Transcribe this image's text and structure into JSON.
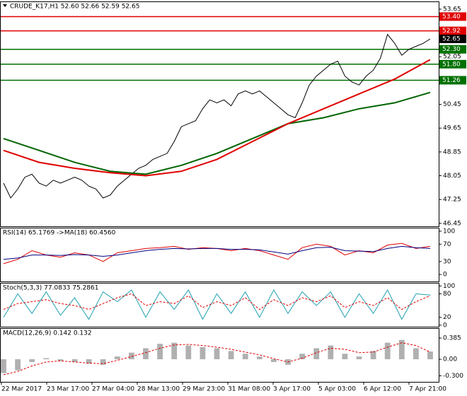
{
  "chart_data": [
    {
      "type": "line",
      "title": "CRUDE_K17,H1  52.60 52.66 52.59 52.65",
      "ylim": [
        46.35,
        53.91
      ],
      "yticks": [
        46.45,
        47.25,
        48.05,
        48.85,
        49.65,
        50.45,
        52.05,
        53.65
      ],
      "xlabels": [
        "22 Mar 2017",
        "23 Mar 17:00",
        "27 Mar 04:00",
        "28 Mar 13:00",
        "29 Mar 23:00",
        "31 Mar 08:00",
        "3 Apr 17:00",
        "5 Apr 03:00",
        "6 Apr 12:00",
        "7 Apr 21:00"
      ],
      "levels": [
        {
          "value": 53.4,
          "label": "53.40",
          "color": "#e00000"
        },
        {
          "value": 52.92,
          "label": "52.92",
          "color": "#e00000"
        },
        {
          "value": 52.3,
          "label": "52.30",
          "color": "#007000"
        },
        {
          "value": 51.8,
          "label": "51.80",
          "color": "#007000"
        },
        {
          "value": 51.26,
          "label": "51.26",
          "color": "#007000"
        }
      ],
      "last": 52.65,
      "series": [
        {
          "style": "line",
          "color": "#000000",
          "width": 1,
          "values": [
            47.8,
            47.3,
            47.6,
            48.0,
            48.1,
            47.8,
            47.7,
            47.9,
            47.8,
            47.9,
            48.0,
            47.9,
            47.7,
            47.6,
            47.3,
            47.4,
            47.7,
            47.9,
            48.1,
            48.3,
            48.4,
            48.6,
            48.7,
            48.8,
            49.2,
            49.7,
            49.8,
            49.9,
            50.3,
            50.6,
            50.5,
            50.6,
            50.4,
            50.8,
            50.9,
            50.8,
            50.9,
            50.7,
            50.5,
            50.3,
            50.1,
            50.0,
            50.5,
            51.1,
            51.4,
            51.6,
            51.8,
            51.9,
            51.4,
            51.2,
            51.1,
            51.4,
            51.6,
            52.0,
            52.8,
            52.5,
            52.1,
            52.3,
            52.4,
            52.5,
            52.65
          ]
        },
        {
          "style": "line",
          "color": "#006400",
          "width": 2,
          "values": [
            49.3,
            48.9,
            48.5,
            48.2,
            48.1,
            48.4,
            48.8,
            49.3,
            49.8,
            50.0,
            50.3,
            50.5,
            50.85
          ]
        },
        {
          "style": "line",
          "color": "#e00000",
          "width": 2,
          "values": [
            48.9,
            48.5,
            48.3,
            48.15,
            48.05,
            48.2,
            48.6,
            49.2,
            49.8,
            50.3,
            50.8,
            51.3,
            51.95
          ]
        }
      ]
    },
    {
      "type": "line",
      "title": "RSI(14) 65.1769 ->MA(18) 60.4560",
      "ylim": [
        -16,
        108
      ],
      "yticks": [
        0,
        30,
        70,
        100
      ],
      "series": [
        {
          "style": "line",
          "color": "#e00000",
          "width": 1,
          "values": [
            25,
            35,
            55,
            45,
            40,
            50,
            45,
            30,
            50,
            55,
            60,
            62,
            65,
            58,
            62,
            60,
            55,
            60,
            55,
            45,
            35,
            62,
            70,
            65,
            45,
            55,
            50,
            68,
            72,
            60,
            65
          ]
        },
        {
          "style": "line",
          "color": "#000080",
          "width": 1,
          "values": [
            35,
            38,
            45,
            45,
            44,
            46,
            45,
            42,
            45,
            50,
            55,
            58,
            60,
            59,
            60,
            60,
            58,
            58,
            57,
            52,
            47,
            55,
            62,
            63,
            55,
            54,
            53,
            60,
            65,
            62,
            60
          ]
        }
      ]
    },
    {
      "type": "line",
      "title": "Stoch(5,3,3) 77.0833 75.2861",
      "ylim": [
        -4,
        108
      ],
      "yticks": [
        0,
        20,
        80,
        100
      ],
      "series": [
        {
          "style": "line",
          "color": "#20a0b0",
          "width": 1,
          "values": [
            20,
            80,
            30,
            85,
            25,
            70,
            15,
            85,
            60,
            90,
            20,
            85,
            40,
            90,
            15,
            80,
            30,
            85,
            20,
            90,
            30,
            85,
            50,
            85,
            20,
            80,
            30,
            90,
            15,
            80,
            77
          ]
        },
        {
          "style": "line",
          "color": "#e00000",
          "width": 1,
          "dash": true,
          "values": [
            40,
            55,
            60,
            65,
            55,
            50,
            40,
            55,
            70,
            80,
            50,
            60,
            55,
            75,
            45,
            60,
            50,
            70,
            40,
            65,
            50,
            70,
            60,
            75,
            45,
            60,
            50,
            70,
            40,
            60,
            75
          ]
        }
      ]
    },
    {
      "type": "bar",
      "title": "MACD(12,26,9) 0.142 0.132",
      "ylim": [
        -0.41,
        0.565
      ],
      "yticks": [
        {
          "value": -0.3,
          "label": "-0.300"
        },
        {
          "value": 0,
          "label": "0.00"
        },
        0.385
      ],
      "series": [
        {
          "style": "bar",
          "color": "#b0b0b0",
          "values": [
            -0.25,
            -0.2,
            -0.05,
            0.02,
            -0.03,
            -0.05,
            -0.08,
            -0.1,
            0.05,
            0.12,
            0.2,
            0.28,
            0.3,
            0.25,
            0.22,
            0.2,
            0.15,
            0.1,
            0.05,
            -0.05,
            -0.1,
            0.1,
            0.2,
            0.25,
            0.1,
            0.05,
            0.15,
            0.3,
            0.35,
            0.2,
            0.14
          ]
        },
        {
          "style": "line",
          "color": "#e00000",
          "width": 1,
          "dash": true,
          "values": [
            -0.28,
            -0.22,
            -0.12,
            -0.05,
            -0.03,
            -0.05,
            -0.07,
            -0.08,
            -0.02,
            0.05,
            0.12,
            0.2,
            0.26,
            0.27,
            0.25,
            0.22,
            0.18,
            0.13,
            0.08,
            0.01,
            -0.05,
            0.02,
            0.12,
            0.2,
            0.18,
            0.12,
            0.13,
            0.22,
            0.3,
            0.25,
            0.13
          ]
        }
      ]
    }
  ]
}
